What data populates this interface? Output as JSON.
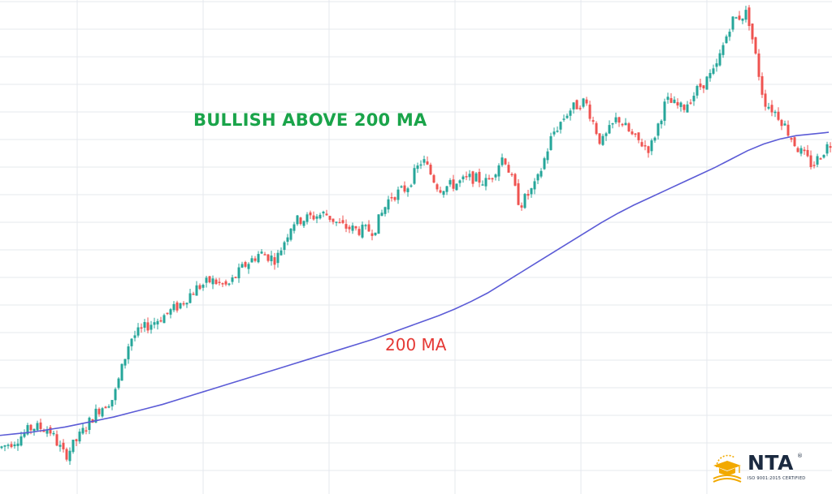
{
  "title": "BULLISH ABOVE 200 MA",
  "ma_label": "200 MA",
  "logo": {
    "name": "NTA",
    "tagline": "ISO 9001:2015 CERTIFIED",
    "reg_mark": "®"
  },
  "colors": {
    "up_candle": "#26a69a",
    "down_candle": "#ef5350",
    "ma_line": "#5b5bd6",
    "title": "#1aa44a",
    "ma_label": "#e53935",
    "grid": "#e6e8ee",
    "logo_gold": "#f2a900",
    "logo_dark": "#1b2a40"
  },
  "chart_data": {
    "type": "line",
    "title": "BULLISH ABOVE 200 MA",
    "xlabel": "",
    "ylabel": "",
    "grid": true,
    "legend": "none",
    "annotations": [
      "200 MA"
    ],
    "series": [
      {
        "name": "200 MA",
        "x": [
          0,
          20,
          40,
          60,
          80,
          100,
          120,
          140,
          160,
          180,
          200,
          220,
          240,
          260,
          280,
          300,
          320,
          340,
          360,
          380,
          400,
          420,
          440,
          460,
          480,
          500,
          520,
          540,
          560,
          580,
          600,
          620,
          640,
          660,
          680,
          700,
          720,
          740,
          760,
          780,
          800,
          820,
          840,
          860,
          880,
          900,
          920,
          940,
          960,
          980,
          1000,
          1020
        ],
        "values": [
          90,
          92,
          94,
          97,
          100,
          104,
          108,
          112,
          117,
          122,
          127,
          133,
          139,
          145,
          151,
          157,
          163,
          169,
          175,
          181,
          187,
          193,
          199,
          205,
          212,
          219,
          226,
          233,
          241,
          250,
          260,
          272,
          284,
          296,
          308,
          320,
          332,
          344,
          355,
          365,
          374,
          383,
          392,
          401,
          410,
          420,
          430,
          438,
          444,
          448,
          450,
          452
        ]
      },
      {
        "name": "price",
        "x": [
          0,
          20,
          40,
          60,
          80,
          100,
          120,
          140,
          160,
          180,
          200,
          220,
          240,
          260,
          280,
          300,
          320,
          340,
          360,
          380,
          400,
          420,
          440,
          460,
          480,
          500,
          520,
          540,
          560,
          580,
          600,
          620,
          640,
          660,
          680,
          700,
          720,
          740,
          760,
          780,
          800,
          820,
          840,
          860,
          880,
          900,
          920,
          940,
          960,
          980,
          1000,
          1020
        ],
        "values": [
          75,
          85,
          100,
          98,
          65,
          92,
          120,
          135,
          205,
          220,
          232,
          245,
          265,
          275,
          268,
          292,
          308,
          300,
          345,
          350,
          355,
          340,
          335,
          335,
          375,
          385,
          420,
          385,
          390,
          398,
          392,
          425,
          365,
          390,
          450,
          478,
          490,
          438,
          470,
          445,
          432,
          490,
          480,
          505,
          525,
          585,
          595,
          490,
          470,
          435,
          412,
          438
        ]
      }
    ]
  }
}
